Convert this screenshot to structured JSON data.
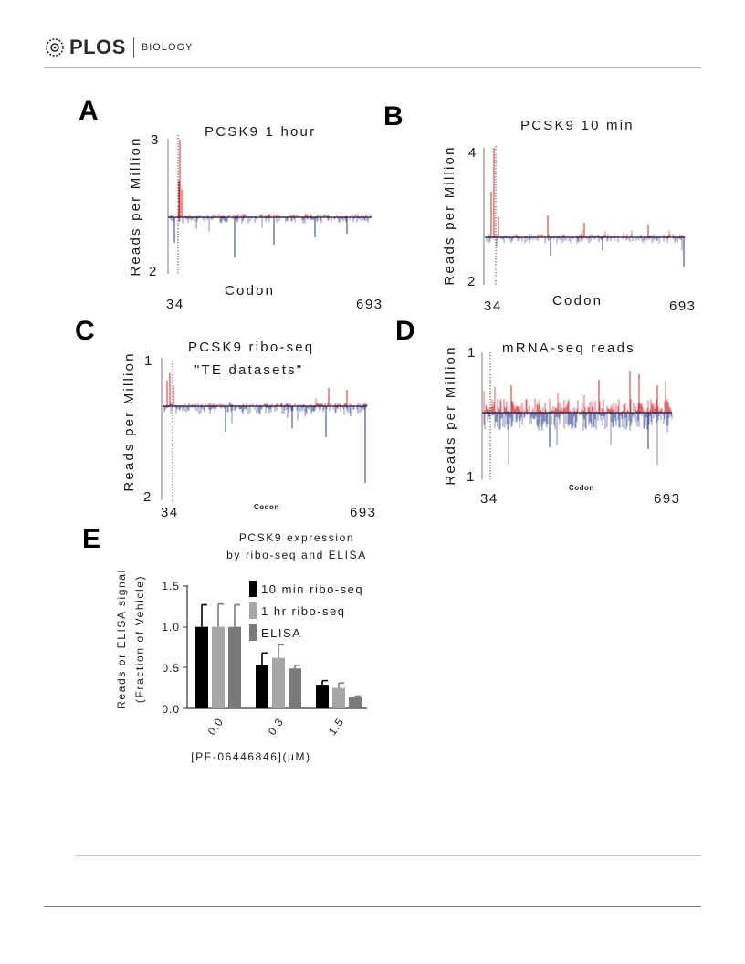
{
  "header": {
    "logo": "PLOS",
    "journal": "BIOLOGY"
  },
  "panels": [
    {
      "id": "A",
      "label": "A",
      "title": "PCSK9 1 hour",
      "ylabel": "Reads per Million",
      "ytop": "3",
      "ybottom": "2",
      "xlabel": "Codon",
      "xstart": "34",
      "xend": "693"
    },
    {
      "id": "B",
      "label": "B",
      "title": "PCSK9 10 min",
      "ylabel": "Reads per Million",
      "ytop": "4",
      "ybottom": "2",
      "xlabel": "Codon",
      "xstart": "34",
      "xend": "693"
    },
    {
      "id": "C",
      "label": "C",
      "title": "PCSK9 ribo-seq",
      "subtitle": "\"TE datasets\"",
      "ylabel": "Reads per Million",
      "ytop": "1",
      "ybottom": "2",
      "xlabel": "Codon",
      "xstart": "34",
      "xend": "693"
    },
    {
      "id": "D",
      "label": "D",
      "title": "mRNA-seq reads",
      "ylabel": "Reads per Million",
      "ytop": "1",
      "ybottom": "1",
      "xlabel": "Codon",
      "xstart": "34",
      "xend": "693"
    }
  ],
  "panelE": {
    "label": "E",
    "title_line1": "PCSK9 expression",
    "title_line2": "by ribo-seq and ELISA",
    "ylabel_line1": "Reads or ELISA signal",
    "ylabel_line2": "(Fraction of Vehicle)",
    "xlabel": "[PF-06446846](μM)",
    "yticks": [
      "0.0",
      "0.5",
      "1.0",
      "1.5"
    ]
  },
  "chart_data": {
    "type": "bar",
    "categories": [
      "0.0",
      "0.3",
      "1.5"
    ],
    "series": [
      {
        "name": "10 min ribo-seq",
        "color": "#000000",
        "values": [
          1.0,
          0.53,
          0.29
        ],
        "errors": [
          0.27,
          0.15,
          0.05
        ]
      },
      {
        "name": "1 hr ribo-seq",
        "color": "#a6a6a6",
        "values": [
          1.0,
          0.62,
          0.25
        ],
        "errors": [
          0.28,
          0.16,
          0.06
        ]
      },
      {
        "name": "ELISA",
        "color": "#7a7a7a",
        "values": [
          1.0,
          0.49,
          0.14
        ],
        "errors": [
          0.27,
          0.04,
          0.01
        ]
      }
    ],
    "ylim": [
      0,
      1.5
    ],
    "xlabel": "[PF-06446846](μM)",
    "ylabel": "Reads or ELISA signal (Fraction of Vehicle)",
    "title": "PCSK9 expression by ribo-seq and ELISA",
    "legend": "top-right"
  },
  "colors": {
    "upper_trace": "#e0201f",
    "lower_trace": "#2b3a8a",
    "bar_10min": "#000000",
    "bar_1hr": "#a6a6a6",
    "bar_elisa": "#7a7a7a"
  }
}
